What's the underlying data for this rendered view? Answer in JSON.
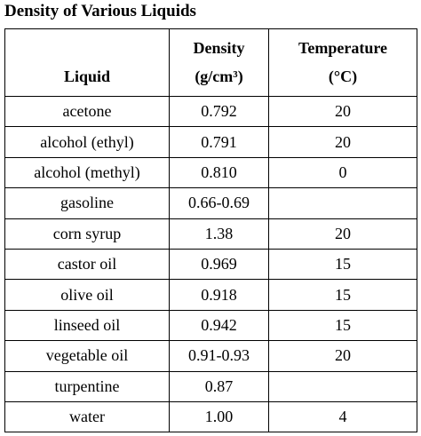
{
  "title": "Density of Various Liquids",
  "table": {
    "header": [
      [
        "Liquid"
      ],
      [
        "Density",
        "(g/cm³)"
      ],
      [
        "Temperature",
        "(°C)"
      ]
    ],
    "rows": [
      [
        "acetone",
        "0.792",
        "20"
      ],
      [
        "alcohol (ethyl)",
        "0.791",
        "20"
      ],
      [
        "alcohol (methyl)",
        "0.810",
        "0"
      ],
      [
        "gasoline",
        "0.66-0.69",
        null
      ],
      [
        "corn syrup",
        "1.38",
        "20"
      ],
      [
        "castor oil",
        "0.969",
        "15"
      ],
      [
        "olive oil",
        "0.918",
        "15"
      ],
      [
        "linseed oil",
        "0.942",
        "15"
      ],
      [
        "vegetable oil",
        "0.91-0.93",
        "20"
      ],
      [
        "turpentine",
        "0.87",
        null
      ],
      [
        "water",
        "1.00",
        "4"
      ]
    ]
  }
}
